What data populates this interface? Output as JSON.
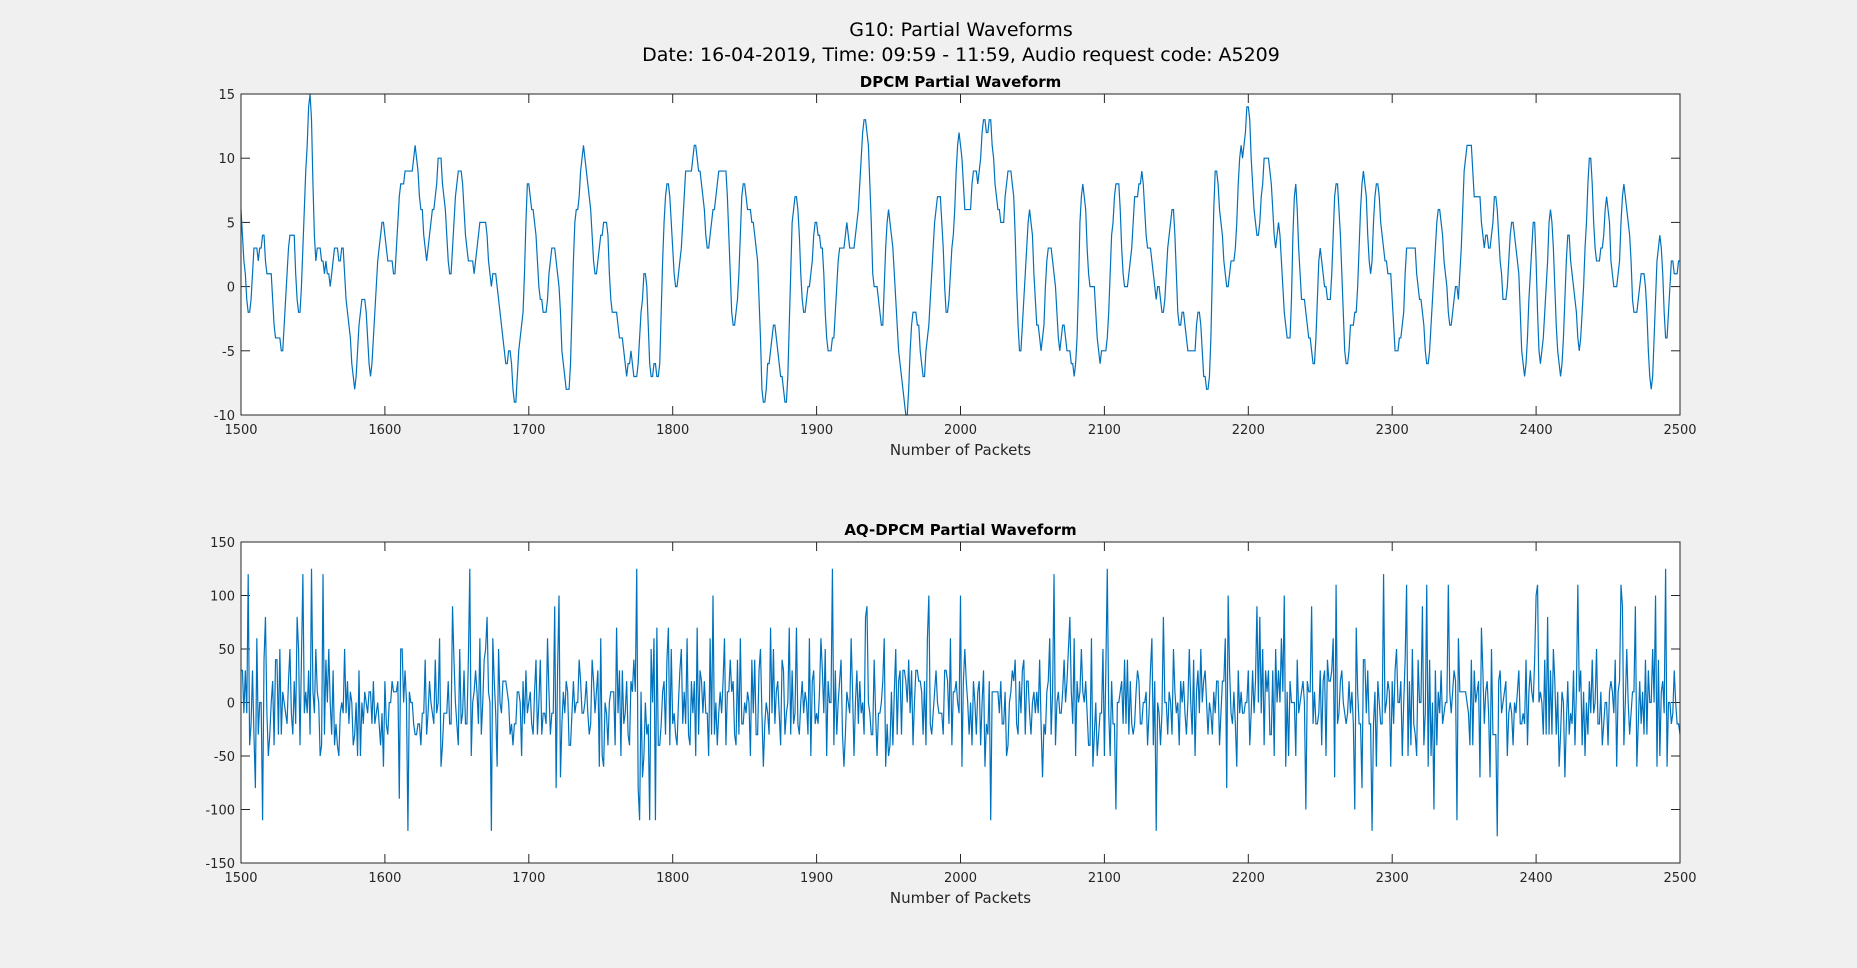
{
  "figure": {
    "title_line1": "G10: Partial Waveforms",
    "title_line2": "Date: 16-04-2019, Time: 09:59 - 11:59, Audio request code: A5209",
    "line_color": "#0072bd",
    "background": "#f0f0f0"
  },
  "chart_data": [
    {
      "type": "line",
      "title": "DPCM Partial Waveform",
      "xlabel": "Number of Packets",
      "ylabel": "",
      "xlim": [
        1500,
        2500
      ],
      "ylim": [
        -10,
        15
      ],
      "xticks": [
        1500,
        1600,
        1700,
        1800,
        1900,
        2000,
        2100,
        2200,
        2300,
        2400,
        2500
      ],
      "yticks": [
        -10,
        -5,
        0,
        5,
        10,
        15
      ],
      "grid": false,
      "series_shape": {
        "x_start": 1500,
        "x_end": 2500,
        "step": 1,
        "value_type": "integer",
        "amplitude_note": "slow oscillating waveform, range approx -10 to 14",
        "anchors": [
          [
            1500,
            5
          ],
          [
            1505,
            -2
          ],
          [
            1510,
            2
          ],
          [
            1515,
            4
          ],
          [
            1520,
            0
          ],
          [
            1528,
            -5
          ],
          [
            1535,
            5
          ],
          [
            1540,
            -2
          ],
          [
            1548,
            14
          ],
          [
            1552,
            3
          ],
          [
            1560,
            1
          ],
          [
            1570,
            3
          ],
          [
            1578,
            -7
          ],
          [
            1585,
            -1
          ],
          [
            1590,
            -6
          ],
          [
            1598,
            5
          ],
          [
            1605,
            1
          ],
          [
            1612,
            8
          ],
          [
            1620,
            10
          ],
          [
            1630,
            3
          ],
          [
            1638,
            10
          ],
          [
            1645,
            2
          ],
          [
            1652,
            9
          ],
          [
            1660,
            1
          ],
          [
            1667,
            5
          ],
          [
            1675,
            1
          ],
          [
            1685,
            -5
          ],
          [
            1690,
            -9
          ],
          [
            1695,
            -3
          ],
          [
            1700,
            8
          ],
          [
            1710,
            -2
          ],
          [
            1718,
            3
          ],
          [
            1727,
            -9
          ],
          [
            1733,
            6
          ],
          [
            1739,
            11
          ],
          [
            1746,
            1
          ],
          [
            1752,
            5
          ],
          [
            1760,
            -2
          ],
          [
            1765,
            -5
          ],
          [
            1775,
            -7
          ],
          [
            1780,
            1
          ],
          [
            1785,
            -6
          ],
          [
            1790,
            -7
          ],
          [
            1796,
            9
          ],
          [
            1802,
            0
          ],
          [
            1810,
            8
          ],
          [
            1815,
            11
          ],
          [
            1825,
            4
          ],
          [
            1835,
            10
          ],
          [
            1843,
            -3
          ],
          [
            1850,
            8
          ],
          [
            1857,
            4
          ],
          [
            1864,
            -9
          ],
          [
            1870,
            -3
          ],
          [
            1878,
            -9
          ],
          [
            1885,
            7
          ],
          [
            1892,
            -2
          ],
          [
            1900,
            5
          ],
          [
            1910,
            -5
          ],
          [
            1918,
            4
          ],
          [
            1925,
            3
          ],
          [
            1935,
            13
          ],
          [
            1940,
            0
          ],
          [
            1945,
            -2
          ],
          [
            1950,
            5
          ],
          [
            1962,
            -10
          ],
          [
            1967,
            -2
          ],
          [
            1975,
            -6
          ],
          [
            1985,
            8
          ],
          [
            1990,
            -2
          ],
          [
            2000,
            11
          ],
          [
            2005,
            5
          ],
          [
            2010,
            9
          ],
          [
            2020,
            13
          ],
          [
            2027,
            5
          ],
          [
            2035,
            9
          ],
          [
            2042,
            -5
          ],
          [
            2048,
            6
          ],
          [
            2055,
            -5
          ],
          [
            2062,
            3
          ],
          [
            2070,
            -4
          ],
          [
            2080,
            -6
          ],
          [
            2085,
            9
          ],
          [
            2090,
            0
          ],
          [
            2100,
            -6
          ],
          [
            2108,
            8
          ],
          [
            2115,
            0
          ],
          [
            2125,
            9
          ],
          [
            2130,
            3
          ],
          [
            2140,
            -2
          ],
          [
            2147,
            6
          ],
          [
            2152,
            -2
          ],
          [
            2160,
            -5
          ],
          [
            2165,
            -3
          ],
          [
            2172,
            -8
          ],
          [
            2178,
            9
          ],
          [
            2185,
            0
          ],
          [
            2190,
            3
          ],
          [
            2195,
            10
          ],
          [
            2200,
            14
          ],
          [
            2205,
            4
          ],
          [
            2213,
            10
          ],
          [
            2220,
            4
          ],
          [
            2228,
            -4
          ],
          [
            2233,
            7
          ],
          [
            2238,
            -1
          ],
          [
            2245,
            -6
          ],
          [
            2250,
            2
          ],
          [
            2256,
            -1
          ],
          [
            2262,
            8
          ],
          [
            2268,
            -6
          ],
          [
            2275,
            -1
          ],
          [
            2280,
            9
          ],
          [
            2285,
            2
          ],
          [
            2290,
            8
          ],
          [
            2295,
            2
          ],
          [
            2305,
            -5
          ],
          [
            2312,
            4
          ],
          [
            2320,
            -1
          ],
          [
            2325,
            -6
          ],
          [
            2332,
            6
          ],
          [
            2340,
            -2
          ],
          [
            2345,
            -1
          ],
          [
            2352,
            11
          ],
          [
            2358,
            8
          ],
          [
            2365,
            3
          ],
          [
            2372,
            6
          ],
          [
            2378,
            -1
          ],
          [
            2385,
            5
          ],
          [
            2392,
            -7
          ],
          [
            2398,
            5
          ],
          [
            2403,
            -6
          ],
          [
            2410,
            5
          ],
          [
            2417,
            -7
          ],
          [
            2423,
            4
          ],
          [
            2430,
            -5
          ],
          [
            2437,
            9
          ],
          [
            2443,
            2
          ],
          [
            2450,
            6
          ],
          [
            2455,
            -1
          ],
          [
            2462,
            8
          ],
          [
            2468,
            -2
          ],
          [
            2474,
            1
          ],
          [
            2480,
            -7
          ],
          [
            2486,
            4
          ],
          [
            2490,
            -3
          ],
          [
            2495,
            1
          ],
          [
            2500,
            2
          ]
        ]
      }
    },
    {
      "type": "line",
      "title": "AQ-DPCM Partial Waveform",
      "xlabel": "Number of Packets",
      "ylabel": "",
      "xlim": [
        1500,
        2500
      ],
      "ylim": [
        -150,
        150
      ],
      "xticks": [
        1500,
        1600,
        1700,
        1800,
        1900,
        2000,
        2100,
        2200,
        2300,
        2400,
        2500
      ],
      "yticks": [
        -150,
        -100,
        -50,
        0,
        50,
        100,
        150
      ],
      "grid": false,
      "series_shape": {
        "x_start": 1500,
        "x_end": 2500,
        "step": 1,
        "value_type": "integer",
        "amplitude_note": "dense noisy waveform centered on 0, range approx -125 to 125",
        "seed": 20190416,
        "quantization_levels": [
          -125,
          -120,
          -110,
          -100,
          -90,
          -80,
          -60,
          -50,
          -40,
          -30,
          -20,
          -10,
          0,
          10,
          20,
          30,
          40,
          50,
          60,
          80,
          90,
          100,
          110,
          120,
          125
        ]
      }
    }
  ]
}
